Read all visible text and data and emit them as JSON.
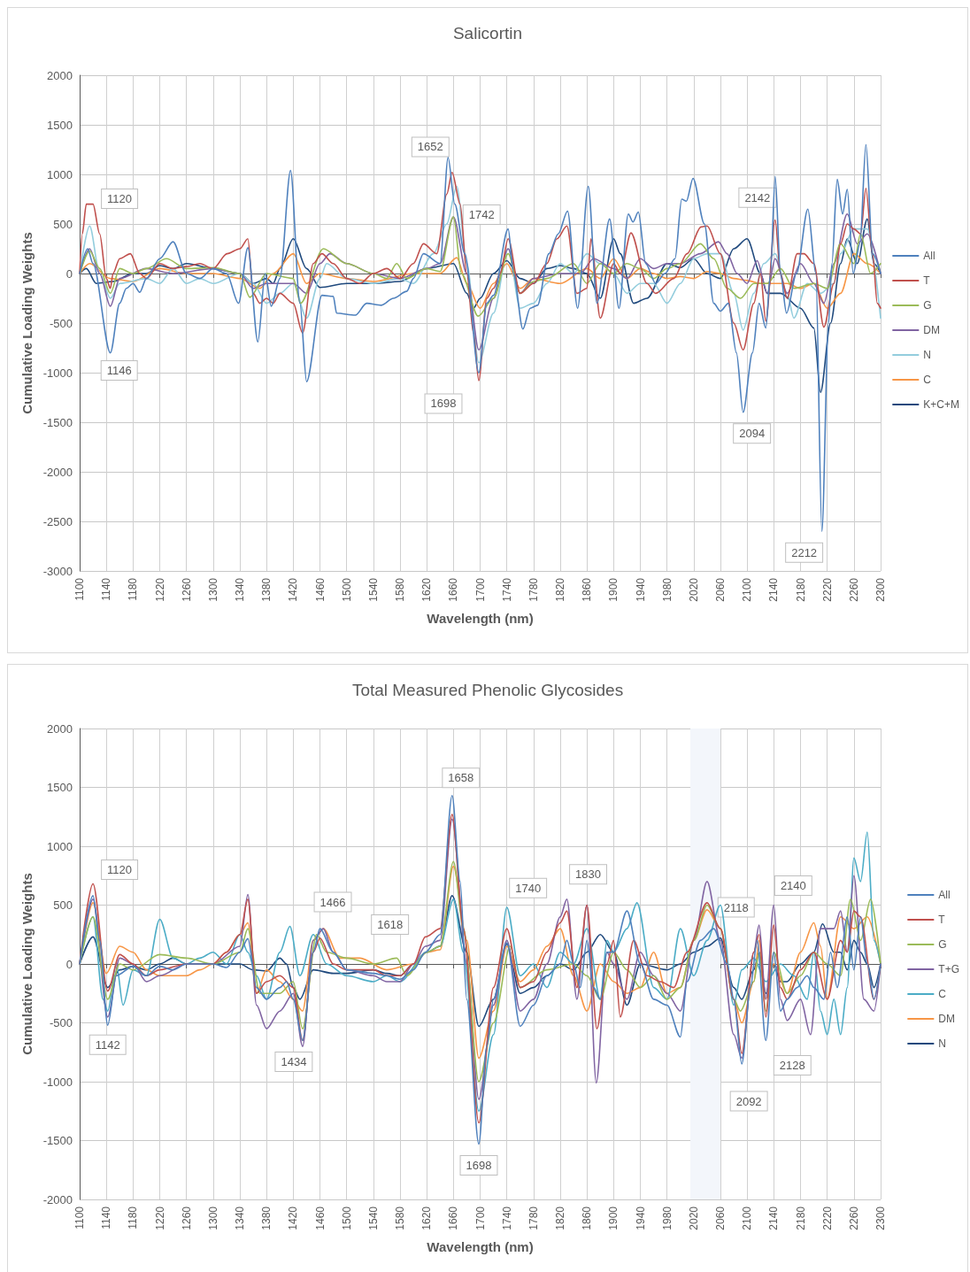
{
  "chart_data": [
    {
      "type": "line",
      "title": "Salicortin",
      "xlabel": "Wavelength (nm)",
      "ylabel": "Cumulative Loading Weights",
      "legend": "right",
      "grid": true,
      "marker": "none",
      "line_style": "solid",
      "xlim": [
        1100,
        2300
      ],
      "xticks": [
        1100,
        1140,
        1180,
        1220,
        1260,
        1300,
        1340,
        1380,
        1420,
        1460,
        1500,
        1540,
        1580,
        1620,
        1660,
        1700,
        1740,
        1780,
        1820,
        1860,
        1900,
        1940,
        1980,
        2020,
        2060,
        2100,
        2140,
        2180,
        2220,
        2260,
        2300
      ],
      "ylim": [
        -3000,
        2000
      ],
      "yticks": [
        -3000,
        -2500,
        -2000,
        -1500,
        -1000,
        -500,
        0,
        500,
        1000,
        1500,
        2000
      ],
      "annotations": [
        {
          "text": "1120",
          "x": 1120,
          "y": 700
        },
        {
          "text": "1146",
          "x": 1146,
          "y": -800
        },
        {
          "text": "1652",
          "x": 1652,
          "y": 1170
        },
        {
          "text": "1698",
          "x": 1698,
          "y": -1080
        },
        {
          "text": "1742",
          "x": 1742,
          "y": 450
        },
        {
          "text": "2142",
          "x": 2142,
          "y": 980
        },
        {
          "text": "2094",
          "x": 2094,
          "y": -1400
        },
        {
          "text": "2212",
          "x": 2212,
          "y": -2600
        }
      ],
      "series": [
        {
          "name": "All",
          "color": "#4f81bd",
          "x": [
            1100,
            1112,
            1120,
            1146,
            1160,
            1170,
            1180,
            1190,
            1200,
            1220,
            1240,
            1260,
            1280,
            1300,
            1320,
            1338,
            1352,
            1367,
            1378,
            1387,
            1400,
            1416,
            1430,
            1440,
            1463,
            1480,
            1485,
            1513,
            1530,
            1552,
            1570,
            1590,
            1600,
            1615,
            1640,
            1652,
            1662,
            1677,
            1698,
            1710,
            1720,
            1742,
            1750,
            1764,
            1775,
            1786,
            1803,
            1817,
            1831,
            1846,
            1862,
            1875,
            1894,
            1908,
            1922,
            1929,
            1937,
            1948,
            1963,
            1977,
            1992,
            2002,
            2009,
            2019,
            2036,
            2050,
            2060,
            2072,
            2084,
            2094,
            2108,
            2118,
            2128,
            2135,
            2142,
            2150,
            2159,
            2174,
            2191,
            2203,
            2212,
            2222,
            2227,
            2235,
            2243,
            2250,
            2259,
            2269,
            2278,
            2288,
            2300
          ],
          "values": [
            0,
            250,
            100,
            -800,
            -300,
            -150,
            -100,
            -190,
            -50,
            150,
            320,
            0,
            -50,
            50,
            0,
            -300,
            260,
            -690,
            0,
            -330,
            -50,
            1040,
            -300,
            -1090,
            -220,
            -230,
            -400,
            -420,
            -300,
            -320,
            -250,
            -180,
            -50,
            200,
            100,
            1170,
            700,
            200,
            -1000,
            -300,
            -220,
            450,
            0,
            -560,
            -350,
            -320,
            200,
            400,
            630,
            -350,
            880,
            -300,
            550,
            -350,
            600,
            520,
            620,
            100,
            -100,
            0,
            150,
            750,
            730,
            960,
            500,
            -300,
            -380,
            -300,
            -800,
            -1400,
            -800,
            -300,
            -550,
            0,
            980,
            0,
            -400,
            0,
            650,
            0,
            -2600,
            -500,
            100,
            950,
            600,
            850,
            0,
            300,
            1300,
            200,
            0
          ]
        },
        {
          "name": "T",
          "color": "#c0504d",
          "x": [
            1100,
            1104,
            1110,
            1120,
            1130,
            1140,
            1146,
            1150,
            1160,
            1176,
            1190,
            1200,
            1220,
            1240,
            1260,
            1280,
            1300,
            1321,
            1340,
            1352,
            1360,
            1370,
            1380,
            1390,
            1400,
            1420,
            1434,
            1450,
            1463,
            1480,
            1500,
            1520,
            1540,
            1560,
            1580,
            1600,
            1615,
            1635,
            1650,
            1658,
            1670,
            1680,
            1690,
            1698,
            1710,
            1720,
            1730,
            1742,
            1760,
            1780,
            1800,
            1815,
            1830,
            1845,
            1860,
            1866,
            1880,
            1900,
            1910,
            1926,
            1950,
            1963,
            1990,
            2010,
            2031,
            2040,
            2060,
            2080,
            2094,
            2110,
            2120,
            2128,
            2142,
            2150,
            2160,
            2175,
            2185,
            2200,
            2215,
            2230,
            2240,
            2250,
            2260,
            2270,
            2278,
            2288,
            2295,
            2300
          ],
          "values": [
            0,
            400,
            700,
            700,
            400,
            -50,
            -150,
            0,
            150,
            200,
            0,
            -50,
            100,
            50,
            70,
            100,
            50,
            200,
            250,
            350,
            -200,
            -300,
            -250,
            -300,
            -200,
            -300,
            -600,
            100,
            200,
            100,
            -50,
            -100,
            0,
            50,
            -50,
            100,
            300,
            200,
            800,
            1020,
            700,
            0,
            -600,
            -1080,
            -250,
            -150,
            0,
            350,
            -200,
            -100,
            100,
            350,
            480,
            -200,
            -150,
            350,
            -450,
            100,
            0,
            410,
            -100,
            -200,
            -50,
            200,
            470,
            480,
            200,
            -500,
            -770,
            -300,
            0,
            -480,
            540,
            0,
            -250,
            200,
            200,
            100,
            -540,
            -100,
            300,
            500,
            450,
            400,
            860,
            200,
            -300,
            -350
          ]
        },
        {
          "name": "G",
          "color": "#9bbb59",
          "x": [
            1100,
            1115,
            1130,
            1146,
            1160,
            1180,
            1200,
            1230,
            1260,
            1300,
            1340,
            1355,
            1380,
            1420,
            1431,
            1465,
            1500,
            1540,
            1560,
            1575,
            1590,
            1620,
            1640,
            1660,
            1672,
            1697,
            1720,
            1742,
            1760,
            1780,
            1800,
            1840,
            1860,
            1880,
            1900,
            1920,
            1940,
            1960,
            1980,
            2000,
            2030,
            2050,
            2070,
            2090,
            2110,
            2130,
            2150,
            2170,
            2200,
            2220,
            2240,
            2260,
            2270,
            2285,
            2300
          ],
          "values": [
            0,
            230,
            50,
            -200,
            50,
            0,
            50,
            150,
            50,
            60,
            0,
            -240,
            0,
            -50,
            -300,
            250,
            100,
            0,
            -50,
            100,
            -50,
            50,
            20,
            570,
            0,
            -430,
            -250,
            200,
            -200,
            -80,
            -50,
            100,
            -100,
            100,
            0,
            100,
            50,
            -50,
            50,
            100,
            300,
            150,
            -150,
            -250,
            -100,
            -100,
            50,
            -150,
            -100,
            -150,
            300,
            100,
            400,
            0,
            100
          ]
        },
        {
          "name": "DM",
          "color": "#8064a2",
          "x": [
            1100,
            1115,
            1130,
            1146,
            1160,
            1200,
            1240,
            1300,
            1340,
            1360,
            1380,
            1400,
            1420,
            1440,
            1460,
            1475,
            1500,
            1540,
            1580,
            1620,
            1640,
            1660,
            1680,
            1698,
            1720,
            1742,
            1760,
            1780,
            1820,
            1850,
            1870,
            1900,
            1920,
            1940,
            1960,
            1980,
            2000,
            2030,
            2057,
            2070,
            2085,
            2100,
            2115,
            2130,
            2142,
            2160,
            2180,
            2200,
            2215,
            2230,
            2250,
            2265,
            2280,
            2300
          ],
          "values": [
            0,
            250,
            0,
            -330,
            -50,
            50,
            0,
            50,
            0,
            -150,
            -100,
            -100,
            -100,
            -200,
            100,
            200,
            100,
            0,
            -50,
            50,
            100,
            570,
            0,
            -770,
            -250,
            250,
            -200,
            -50,
            0,
            0,
            150,
            50,
            -50,
            150,
            50,
            100,
            100,
            200,
            320,
            200,
            0,
            -100,
            130,
            -200,
            150,
            -200,
            100,
            -100,
            -300,
            100,
            600,
            300,
            400,
            0
          ]
        },
        {
          "name": "N",
          "color": "#93cddd",
          "x": [
            1100,
            1115,
            1130,
            1146,
            1160,
            1200,
            1220,
            1240,
            1260,
            1280,
            1300,
            1340,
            1360,
            1380,
            1400,
            1420,
            1440,
            1460,
            1470,
            1500,
            1540,
            1580,
            1600,
            1630,
            1650,
            1665,
            1680,
            1698,
            1720,
            1742,
            1760,
            1780,
            1800,
            1820,
            1840,
            1860,
            1880,
            1900,
            1920,
            1940,
            1960,
            1980,
            2000,
            2020,
            2040,
            2060,
            2080,
            2094,
            2110,
            2125,
            2142,
            2160,
            2170,
            2190,
            2210,
            2230,
            2240,
            2260,
            2280,
            2300
          ],
          "values": [
            0,
            480,
            0,
            -250,
            -100,
            -50,
            -100,
            50,
            -100,
            -50,
            -100,
            0,
            -100,
            -300,
            -200,
            -100,
            -450,
            -50,
            100,
            -50,
            -100,
            -50,
            -100,
            200,
            500,
            880,
            100,
            -900,
            -400,
            250,
            -350,
            -300,
            -100,
            100,
            0,
            200,
            100,
            0,
            -200,
            -100,
            -100,
            -300,
            -100,
            150,
            200,
            200,
            -200,
            -570,
            -200,
            100,
            200,
            -200,
            -450,
            -100,
            -200,
            -100,
            200,
            450,
            450,
            -450
          ]
        },
        {
          "name": "C",
          "color": "#f79646",
          "x": [
            1100,
            1115,
            1146,
            1180,
            1220,
            1260,
            1300,
            1340,
            1370,
            1390,
            1420,
            1440,
            1460,
            1500,
            1540,
            1600,
            1640,
            1665,
            1680,
            1700,
            1720,
            1740,
            1760,
            1780,
            1820,
            1860,
            1880,
            1900,
            1920,
            1940,
            1960,
            1980,
            2000,
            2020,
            2040,
            2060,
            2080,
            2100,
            2120,
            2140,
            2160,
            2180,
            2200,
            2220,
            2240,
            2260,
            2280,
            2300
          ],
          "values": [
            0,
            100,
            -50,
            -80,
            50,
            0,
            0,
            -50,
            -150,
            0,
            200,
            -100,
            0,
            -50,
            -80,
            0,
            0,
            160,
            -100,
            -350,
            -100,
            100,
            -150,
            -50,
            -100,
            50,
            -50,
            150,
            -50,
            50,
            0,
            -50,
            -30,
            -50,
            20,
            0,
            -50,
            -70,
            -100,
            -100,
            -100,
            -150,
            -100,
            -350,
            -200,
            200,
            100,
            0
          ]
        },
        {
          "name": "K+C+M",
          "color": "#1f497d",
          "x": [
            1100,
            1110,
            1125,
            1150,
            1180,
            1200,
            1220,
            1240,
            1260,
            1300,
            1340,
            1360,
            1380,
            1390,
            1400,
            1420,
            1440,
            1460,
            1500,
            1540,
            1580,
            1620,
            1660,
            1680,
            1690,
            1700,
            1720,
            1740,
            1760,
            1780,
            1800,
            1820,
            1840,
            1860,
            1880,
            1900,
            1910,
            1930,
            1950,
            1980,
            2000,
            2020,
            2040,
            2060,
            2080,
            2100,
            2120,
            2130,
            2150,
            2180,
            2200,
            2210,
            2225,
            2240,
            2250,
            2265,
            2280,
            2290,
            2300
          ],
          "values": [
            0,
            50,
            -100,
            -80,
            0,
            0,
            80,
            50,
            100,
            50,
            0,
            -100,
            -50,
            -100,
            50,
            350,
            50,
            -140,
            -100,
            -100,
            -80,
            50,
            100,
            -200,
            -350,
            -250,
            0,
            130,
            -50,
            -100,
            50,
            80,
            50,
            0,
            -250,
            350,
            200,
            -300,
            -250,
            100,
            60,
            150,
            0,
            -50,
            250,
            350,
            0,
            -200,
            -200,
            -350,
            -550,
            -1200,
            -500,
            100,
            350,
            100,
            550,
            100,
            0
          ]
        }
      ]
    },
    {
      "type": "line",
      "title": "Total Measured Phenolic Glycosides",
      "xlabel": "Wavelength (nm)",
      "ylabel": "Cumulative Loading Weights",
      "legend": "right",
      "grid": true,
      "marker": "none",
      "line_style": "solid",
      "xlim": [
        1100,
        2300
      ],
      "xticks": [
        1100,
        1140,
        1180,
        1220,
        1260,
        1300,
        1340,
        1380,
        1420,
        1460,
        1500,
        1540,
        1580,
        1620,
        1660,
        1700,
        1740,
        1780,
        1820,
        1860,
        1900,
        1940,
        1980,
        2020,
        2060,
        2100,
        2140,
        2180,
        2220,
        2260,
        2300
      ],
      "ylim": [
        -2000,
        2000
      ],
      "yticks": [
        -2000,
        -1500,
        -1000,
        -500,
        0,
        500,
        1000,
        1500,
        2000
      ],
      "bands": [
        {
          "axis": "x",
          "from": 2015,
          "to": 2060,
          "color": "#f3f6fb"
        }
      ],
      "annotations": [
        {
          "text": "1120",
          "x": 1120,
          "y": 680
        },
        {
          "text": "1142",
          "x": 1142,
          "y": -520
        },
        {
          "text": "1466",
          "x": 1466,
          "y": 300
        },
        {
          "text": "1434",
          "x": 1434,
          "y": -650
        },
        {
          "text": "1618",
          "x": 1618,
          "y": 230
        },
        {
          "text": "1658",
          "x": 1658,
          "y": 1430
        },
        {
          "text": "1698",
          "x": 1698,
          "y": -1530
        },
        {
          "text": "1740",
          "x": 1740,
          "y": 480
        },
        {
          "text": "1830",
          "x": 1830,
          "y": 550
        },
        {
          "text": "2118",
          "x": 2118,
          "y": 330
        },
        {
          "text": "2140",
          "x": 2140,
          "y": 500
        },
        {
          "text": "2092",
          "x": 2092,
          "y": -850
        },
        {
          "text": "2128",
          "x": 2128,
          "y": -650
        }
      ],
      "series": [
        {
          "name": "All",
          "color": "#4f81bd",
          "x": [
            1100,
            1120,
            1130,
            1142,
            1155,
            1180,
            1200,
            1220,
            1240,
            1260,
            1300,
            1320,
            1340,
            1352,
            1365,
            1380,
            1400,
            1410,
            1420,
            1434,
            1450,
            1460,
            1480,
            1500,
            1540,
            1560,
            1580,
            1600,
            1618,
            1640,
            1658,
            1670,
            1680,
            1698,
            1710,
            1720,
            1740,
            1760,
            1780,
            1800,
            1820,
            1830,
            1840,
            1850,
            1860,
            1870,
            1880,
            1890,
            1900,
            1920,
            1940,
            1960,
            1980,
            2000,
            2010,
            2030,
            2050,
            2070,
            2080,
            2092,
            2105,
            2115,
            2128,
            2140,
            2150,
            2160,
            2175,
            2190,
            2200,
            2215,
            2225,
            2235,
            2250,
            2260,
            2270,
            2280,
            2290,
            2300
          ],
          "values": [
            0,
            580,
            200,
            -520,
            -100,
            -20,
            -100,
            -20,
            -50,
            0,
            0,
            -30,
            100,
            215,
            -200,
            -300,
            -200,
            -150,
            -300,
            -650,
            100,
            300,
            100,
            -50,
            -80,
            -100,
            -130,
            -50,
            100,
            250,
            1430,
            700,
            -300,
            -1530,
            -700,
            -300,
            180,
            -530,
            -350,
            -100,
            0,
            200,
            0,
            -200,
            200,
            -200,
            -300,
            100,
            100,
            450,
            0,
            -300,
            -350,
            -620,
            -150,
            200,
            300,
            0,
            -300,
            -850,
            -200,
            200,
            -650,
            100,
            -400,
            -300,
            -200,
            -100,
            -200,
            -300,
            100,
            -200,
            400,
            -50,
            400,
            0,
            -300,
            0
          ]
        },
        {
          "name": "T",
          "color": "#c0504d",
          "x": [
            1100,
            1120,
            1142,
            1160,
            1180,
            1200,
            1220,
            1260,
            1300,
            1320,
            1340,
            1352,
            1365,
            1380,
            1400,
            1420,
            1434,
            1450,
            1460,
            1480,
            1500,
            1540,
            1560,
            1580,
            1600,
            1618,
            1640,
            1658,
            1675,
            1698,
            1720,
            1740,
            1760,
            1780,
            1800,
            1820,
            1830,
            1845,
            1860,
            1875,
            1890,
            1900,
            1910,
            1930,
            1950,
            1970,
            1990,
            2010,
            2040,
            2060,
            2080,
            2092,
            2110,
            2118,
            2128,
            2140,
            2150,
            2160,
            2180,
            2200,
            2220,
            2240,
            2250,
            2260,
            2270,
            2290,
            2300
          ],
          "values": [
            0,
            680,
            -230,
            80,
            0,
            -100,
            -50,
            0,
            0,
            100,
            250,
            550,
            -250,
            -150,
            -100,
            -200,
            -650,
            100,
            220,
            0,
            -50,
            -50,
            -100,
            -100,
            0,
            230,
            300,
            1270,
            300,
            -1350,
            -200,
            300,
            -200,
            -150,
            100,
            350,
            450,
            -200,
            500,
            -550,
            0,
            200,
            -450,
            200,
            -100,
            -150,
            -200,
            100,
            520,
            300,
            -300,
            -760,
            100,
            250,
            -450,
            330,
            -200,
            -300,
            -50,
            100,
            -300,
            200,
            100,
            450,
            400,
            -300,
            0
          ]
        },
        {
          "name": "G",
          "color": "#9bbb59",
          "x": [
            1100,
            1120,
            1142,
            1160,
            1180,
            1220,
            1260,
            1300,
            1340,
            1352,
            1370,
            1400,
            1420,
            1434,
            1455,
            1470,
            1500,
            1540,
            1575,
            1590,
            1620,
            1640,
            1660,
            1675,
            1698,
            1720,
            1745,
            1760,
            1800,
            1840,
            1860,
            1880,
            1900,
            1920,
            1940,
            1960,
            1980,
            2000,
            2020,
            2040,
            2060,
            2080,
            2090,
            2110,
            2118,
            2128,
            2140,
            2160,
            2180,
            2200,
            2220,
            2240,
            2255,
            2270,
            2285,
            2300
          ],
          "values": [
            0,
            400,
            -300,
            0,
            -50,
            80,
            50,
            0,
            100,
            300,
            -250,
            -250,
            -150,
            -550,
            250,
            100,
            50,
            0,
            50,
            -100,
            100,
            150,
            870,
            300,
            -1000,
            -500,
            150,
            -200,
            -50,
            0,
            -100,
            -300,
            100,
            -50,
            -200,
            -100,
            -300,
            -200,
            200,
            500,
            300,
            -300,
            -400,
            -150,
            100,
            -400,
            100,
            -250,
            -100,
            100,
            0,
            -100,
            550,
            200,
            550,
            0
          ]
        },
        {
          "name": "T+G",
          "color": "#8064a2",
          "x": [
            1100,
            1120,
            1142,
            1160,
            1180,
            1200,
            1220,
            1260,
            1300,
            1340,
            1352,
            1365,
            1380,
            1400,
            1420,
            1434,
            1450,
            1465,
            1480,
            1500,
            1540,
            1560,
            1580,
            1600,
            1618,
            1640,
            1658,
            1680,
            1698,
            1720,
            1740,
            1760,
            1780,
            1800,
            1820,
            1830,
            1845,
            1860,
            1874,
            1890,
            1900,
            1920,
            1940,
            1960,
            1980,
            2000,
            2020,
            2040,
            2060,
            2080,
            2092,
            2110,
            2118,
            2128,
            2140,
            2150,
            2160,
            2180,
            2195,
            2210,
            2230,
            2240,
            2250,
            2260,
            2275,
            2290,
            2300
          ],
          "values": [
            0,
            550,
            -450,
            50,
            0,
            -150,
            -100,
            0,
            0,
            150,
            590,
            -350,
            -550,
            -400,
            -250,
            -700,
            200,
            300,
            100,
            -50,
            -100,
            -150,
            -150,
            0,
            150,
            200,
            1230,
            0,
            -1150,
            -350,
            200,
            -400,
            -300,
            0,
            400,
            550,
            -300,
            500,
            -1010,
            100,
            0,
            -300,
            100,
            -100,
            -250,
            -400,
            200,
            700,
            200,
            -600,
            -800,
            100,
            330,
            -300,
            500,
            -300,
            -480,
            -300,
            -600,
            300,
            300,
            450,
            100,
            750,
            -300,
            -400,
            0
          ]
        },
        {
          "name": "C",
          "color": "#4bacc6",
          "x": [
            1100,
            1120,
            1135,
            1142,
            1155,
            1165,
            1180,
            1200,
            1220,
            1240,
            1260,
            1280,
            1300,
            1320,
            1340,
            1352,
            1365,
            1380,
            1400,
            1415,
            1430,
            1450,
            1470,
            1500,
            1540,
            1560,
            1580,
            1620,
            1640,
            1660,
            1675,
            1698,
            1720,
            1740,
            1760,
            1780,
            1800,
            1820,
            1840,
            1860,
            1880,
            1890,
            1900,
            1920,
            1935,
            1960,
            1980,
            2000,
            2020,
            2040,
            2060,
            2080,
            2092,
            2110,
            2128,
            2150,
            2170,
            2190,
            2200,
            2210,
            2220,
            2230,
            2240,
            2250,
            2260,
            2270,
            2280,
            2290,
            2300
          ],
          "values": [
            0,
            400,
            -300,
            -400,
            0,
            -350,
            -50,
            -100,
            380,
            50,
            0,
            50,
            100,
            0,
            250,
            100,
            -100,
            -300,
            100,
            320,
            -100,
            250,
            0,
            -100,
            -150,
            -100,
            -150,
            100,
            150,
            550,
            100,
            -1250,
            -600,
            480,
            -100,
            0,
            -200,
            100,
            0,
            300,
            -300,
            200,
            100,
            300,
            520,
            -200,
            -300,
            300,
            -100,
            200,
            500,
            -350,
            -50,
            50,
            -150,
            0,
            -100,
            -300,
            100,
            -400,
            -600,
            -300,
            -600,
            -200,
            900,
            700,
            1120,
            200,
            0
          ]
        },
        {
          "name": "DM",
          "color": "#f79646",
          "x": [
            1100,
            1120,
            1140,
            1160,
            1180,
            1200,
            1220,
            1260,
            1280,
            1300,
            1320,
            1340,
            1352,
            1365,
            1380,
            1400,
            1420,
            1434,
            1450,
            1465,
            1490,
            1520,
            1560,
            1600,
            1620,
            1640,
            1660,
            1680,
            1698,
            1720,
            1740,
            1760,
            1780,
            1800,
            1820,
            1840,
            1860,
            1880,
            1900,
            1920,
            1940,
            1960,
            1980,
            2000,
            2020,
            2040,
            2060,
            2080,
            2092,
            2110,
            2118,
            2128,
            2140,
            2160,
            2180,
            2200,
            2210,
            2220,
            2240,
            2260,
            2280,
            2300
          ],
          "values": [
            0,
            520,
            -80,
            150,
            100,
            -50,
            -100,
            -100,
            -50,
            0,
            100,
            250,
            350,
            -250,
            -50,
            -150,
            -300,
            -400,
            200,
            300,
            50,
            50,
            -50,
            0,
            100,
            120,
            830,
            200,
            -800,
            -400,
            150,
            -150,
            -50,
            150,
            300,
            -100,
            -400,
            0,
            -150,
            -250,
            -200,
            100,
            -250,
            -200,
            200,
            460,
            300,
            -300,
            -500,
            -150,
            200,
            -300,
            0,
            -250,
            100,
            350,
            150,
            -300,
            400,
            300,
            400,
            0
          ]
        },
        {
          "name": "N",
          "color": "#1f497d",
          "x": [
            1100,
            1120,
            1142,
            1160,
            1180,
            1200,
            1220,
            1240,
            1260,
            1300,
            1340,
            1360,
            1380,
            1400,
            1410,
            1420,
            1430,
            1450,
            1480,
            1500,
            1540,
            1560,
            1580,
            1600,
            1620,
            1640,
            1658,
            1680,
            1698,
            1720,
            1740,
            1760,
            1780,
            1800,
            1820,
            1840,
            1860,
            1880,
            1900,
            1920,
            1940,
            1980,
            2000,
            2020,
            2040,
            2060,
            2080,
            2092,
            2110,
            2118,
            2128,
            2140,
            2150,
            2160,
            2180,
            2200,
            2213,
            2230,
            2240,
            2250,
            2260,
            2270,
            2280,
            2290,
            2300
          ],
          "values": [
            0,
            230,
            -200,
            -50,
            -20,
            -50,
            0,
            50,
            0,
            0,
            0,
            -50,
            -60,
            50,
            0,
            -200,
            -300,
            -50,
            -80,
            -80,
            -50,
            -80,
            -100,
            0,
            100,
            150,
            580,
            100,
            -530,
            -300,
            170,
            -250,
            -200,
            -100,
            0,
            -50,
            100,
            250,
            100,
            -350,
            0,
            -50,
            0,
            100,
            150,
            220,
            -200,
            -300,
            -50,
            100,
            -250,
            0,
            -150,
            -150,
            0,
            100,
            340,
            100,
            100,
            -50,
            200,
            100,
            0,
            -200,
            0
          ]
        }
      ]
    }
  ]
}
